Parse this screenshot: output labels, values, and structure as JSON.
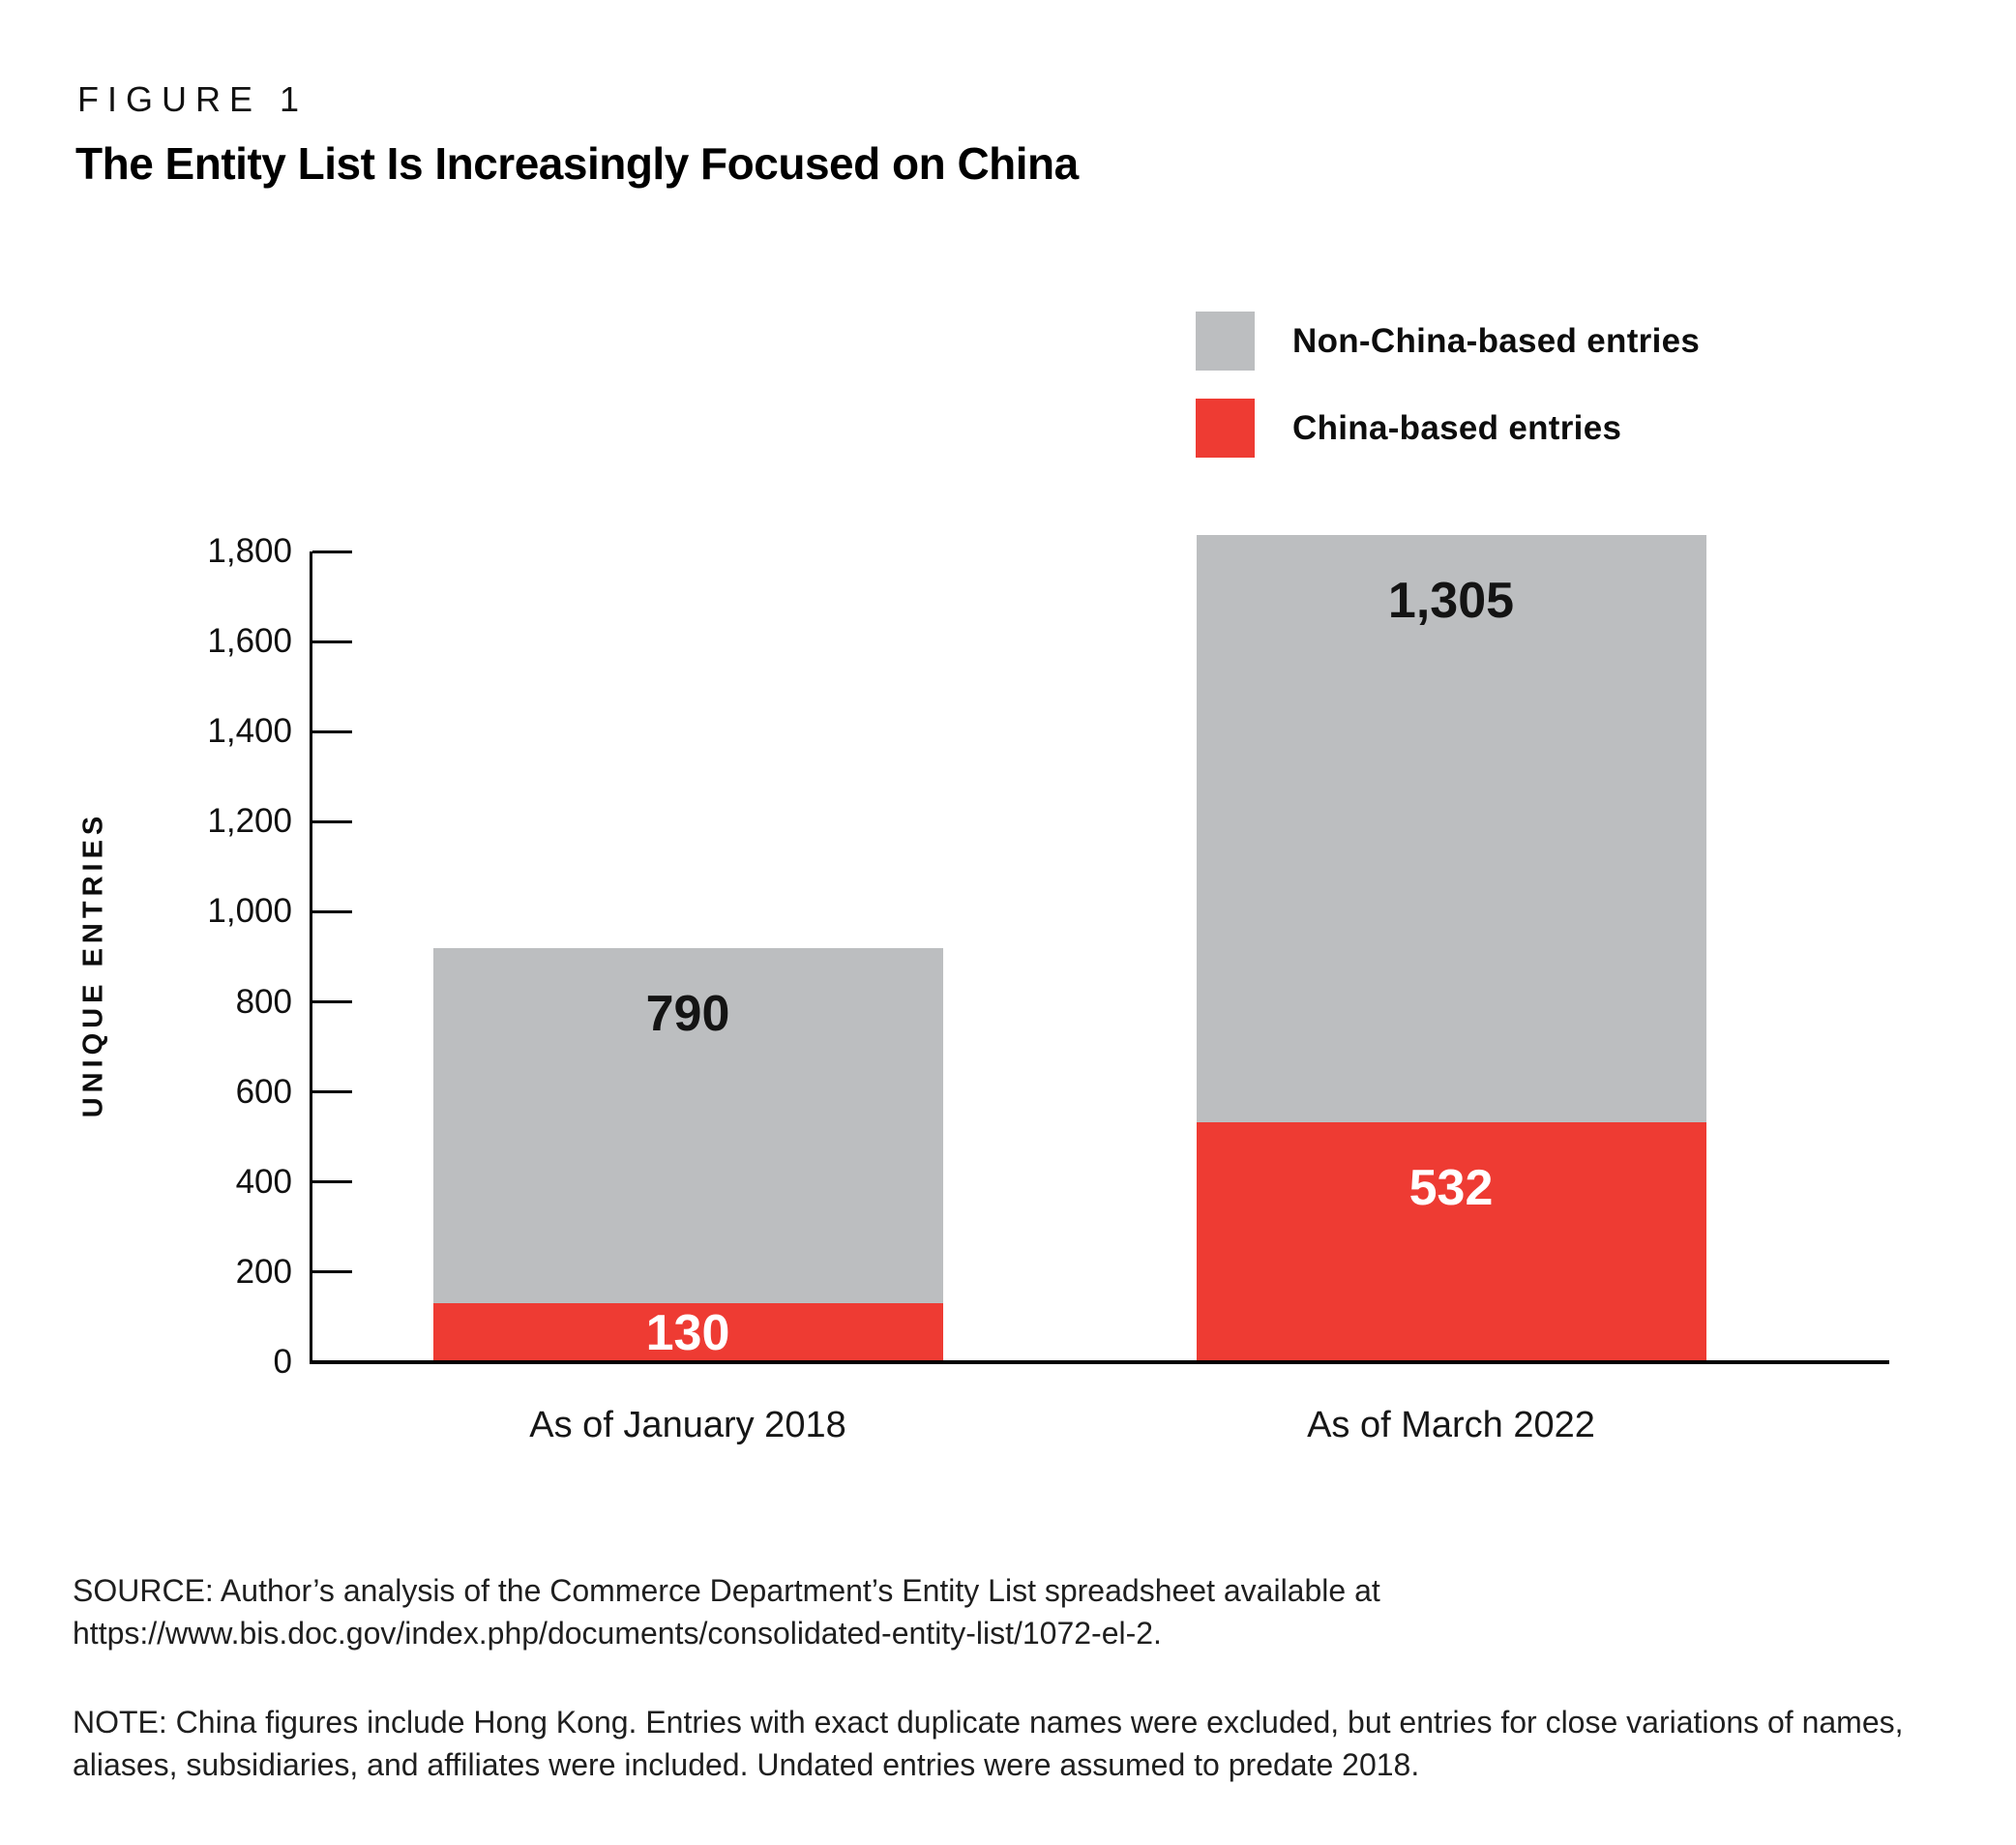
{
  "figure": {
    "label": "FIGURE 1",
    "title": "The Entity List Is Increasingly Focused on China"
  },
  "legend": [
    {
      "label": "Non-China-based entries",
      "color": "#bcbec0"
    },
    {
      "label": "China-based entries",
      "color": "#ee3b33"
    }
  ],
  "chart_data": {
    "type": "bar",
    "stacked": true,
    "title": "The Entity List Is Increasingly Focused on China",
    "categories": [
      "As of January 2018",
      "As of March 2022"
    ],
    "series": [
      {
        "name": "China-based entries",
        "color": "#ee3b33",
        "label_color": "#ffffff",
        "values": [
          130,
          532
        ],
        "value_labels": [
          "130",
          "532"
        ]
      },
      {
        "name": "Non-China-based entries",
        "color": "#bcbec0",
        "label_color": "#141414",
        "values": [
          790,
          1305
        ],
        "value_labels": [
          "790",
          "1,305"
        ]
      }
    ],
    "totals": [
      920,
      1837
    ],
    "ylabel": "UNIQUE ENTRIES",
    "ylim": [
      0,
      1800
    ],
    "yticks": [
      0,
      200,
      400,
      600,
      800,
      1000,
      1200,
      1400,
      1600,
      1800
    ],
    "ytick_labels": [
      "0",
      "200",
      "400",
      "600",
      "800",
      "1,000",
      "1,200",
      "1,400",
      "1,600",
      "1,800"
    ],
    "grid": false,
    "legend_position": "top-right"
  },
  "source": {
    "text": "SOURCE: Author’s analysis of the Commerce Department’s Entity List spreadsheet available at https://www.bis.doc.gov/index.php/documents/consolidated-entity-list/1072-el-2."
  },
  "note": {
    "text": "NOTE: China figures include Hong Kong. Entries with exact duplicate names were excluded, but entries for close variations of names, aliases, subsidiaries, and affiliates were included. Undated entries were assumed to predate 2018."
  }
}
